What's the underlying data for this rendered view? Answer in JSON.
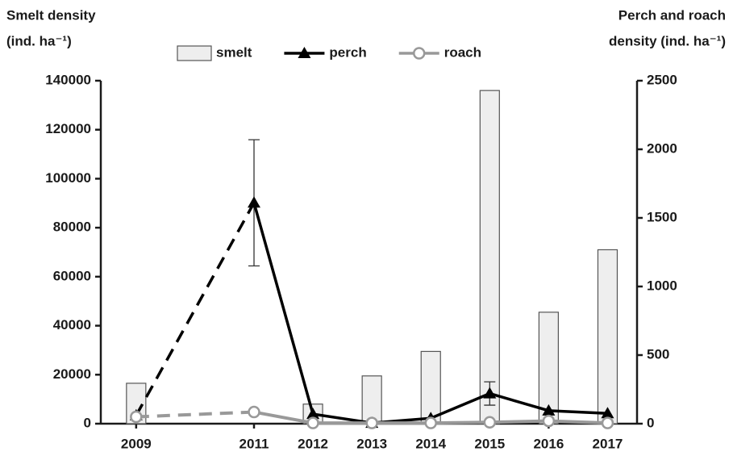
{
  "chart_data": {
    "type": "combo",
    "y_label": [
      "Smelt density",
      "(ind. ha⁻¹)"
    ],
    "y2_label": [
      "Perch and roach",
      "density (ind. ha⁻¹)"
    ],
    "x": [
      2009,
      2011,
      2012,
      2013,
      2014,
      2015,
      2016,
      2017
    ],
    "xlim": [
      2008.4,
      2017.5
    ],
    "xticks": [
      2009,
      2011,
      2012,
      2013,
      2014,
      2015,
      2016,
      2017
    ],
    "ylim": [
      0,
      140000
    ],
    "yticks": [
      0,
      20000,
      40000,
      60000,
      80000,
      100000,
      120000,
      140000
    ],
    "y2lim": [
      0,
      2500
    ],
    "y2ticks": [
      0,
      500,
      1000,
      1500,
      2000,
      2500
    ],
    "legend": "top",
    "series": [
      {
        "name": "smelt",
        "type": "bar",
        "color": "#eeeeee",
        "values": [
          16500,
          null,
          8000,
          19500,
          29500,
          136000,
          45500,
          71000
        ]
      },
      {
        "name": "perch",
        "type": "line",
        "axis": "y2",
        "color": "#000000",
        "marker": "triangle",
        "values": [
          60,
          1610,
          70,
          5,
          40,
          220,
          95,
          75
        ],
        "errors": [
          null,
          460,
          null,
          null,
          null,
          85,
          null,
          null
        ]
      },
      {
        "name": "roach",
        "type": "line",
        "axis": "y2",
        "color": "#999999",
        "marker": "circle",
        "values": [
          50,
          85,
          5,
          5,
          5,
          10,
          20,
          5
        ]
      }
    ]
  }
}
